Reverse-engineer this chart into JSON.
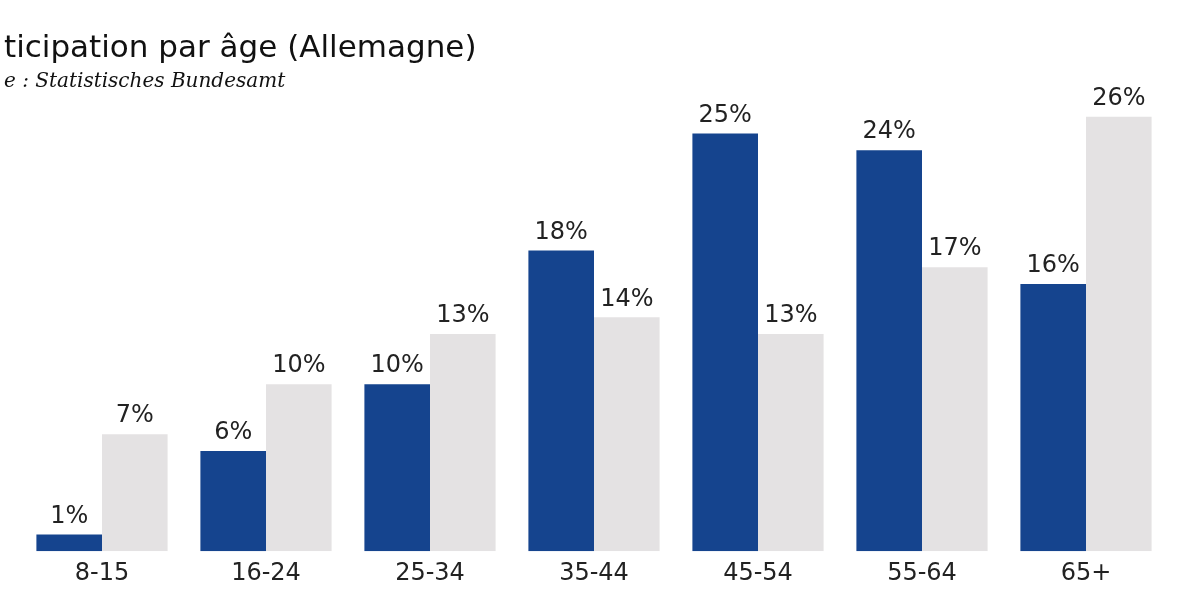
{
  "chart_data": {
    "type": "bar",
    "title": "ticipation par âge (Allemagne)",
    "subtitle": "e : Statistisches Bundesamt",
    "categories": [
      "8-15",
      "16-24",
      "25-34",
      "35-44",
      "45-54",
      "55-64",
      "65+"
    ],
    "series": [
      {
        "color": "#15448e",
        "values": [
          1,
          6,
          10,
          18,
          25,
          24,
          16
        ],
        "value_labels": [
          "1%",
          "6%",
          "10%",
          "18%",
          "25%",
          "24%",
          "16%"
        ]
      },
      {
        "color": "#e4e2e3",
        "values": [
          7,
          10,
          13,
          14,
          13,
          17,
          26
        ],
        "value_labels": [
          "7%",
          "10%",
          "13%",
          "14%",
          "13%",
          "17%",
          "26%"
        ]
      }
    ],
    "grid": false,
    "legend": false
  }
}
